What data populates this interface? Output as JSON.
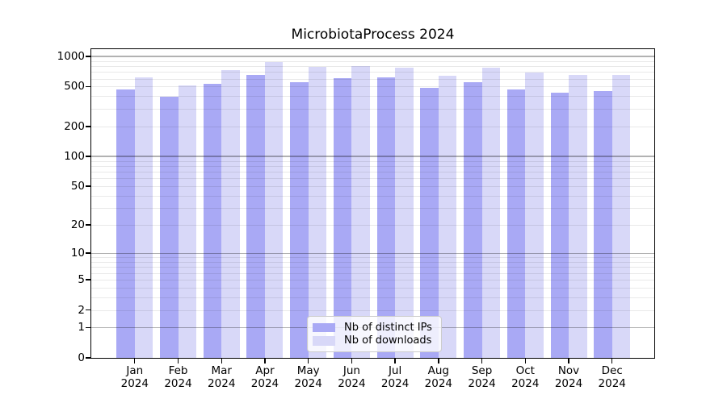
{
  "chart_data": {
    "type": "bar",
    "title": "MicrobiotaProcess 2024",
    "categories": [
      "Jan 2024",
      "Feb 2024",
      "Mar 2024",
      "Apr 2024",
      "May 2024",
      "Jun 2024",
      "Jul 2024",
      "Aug 2024",
      "Sep 2024",
      "Oct 2024",
      "Nov 2024",
      "Dec 2024"
    ],
    "series": [
      {
        "name": "Nb of distinct IPs",
        "color": "#a9a9f5",
        "values": [
          470,
          395,
          530,
          655,
          550,
          610,
          620,
          490,
          555,
          470,
          435,
          455
        ]
      },
      {
        "name": "Nb of downloads",
        "color": "#d8d8f8",
        "values": [
          620,
          510,
          735,
          870,
          790,
          805,
          770,
          645,
          775,
          690,
          650,
          650
        ]
      }
    ],
    "y_axis": {
      "scale": "log10(1+x)",
      "tick_labels": [
        0,
        1,
        2,
        5,
        10,
        20,
        50,
        100,
        200,
        500,
        1000
      ],
      "range": [
        0,
        1180
      ]
    },
    "x_axis": {
      "month_labels": [
        "Jan",
        "Feb",
        "Mar",
        "Apr",
        "May",
        "Jun",
        "Jul",
        "Aug",
        "Sep",
        "Oct",
        "Nov",
        "Dec"
      ],
      "year_label": "2024"
    },
    "grid": {
      "major_at": [
        1,
        10,
        100,
        1000
      ],
      "minor_multiples": [
        2,
        3,
        4,
        5,
        6,
        7,
        8,
        9
      ],
      "major_color": "rgba(0,0,0,0.30)",
      "minor_color": "rgba(0,0,0,0.085)"
    },
    "legend_position": "lower center",
    "frame_color": "#000000",
    "background_color": "#ffffff"
  }
}
